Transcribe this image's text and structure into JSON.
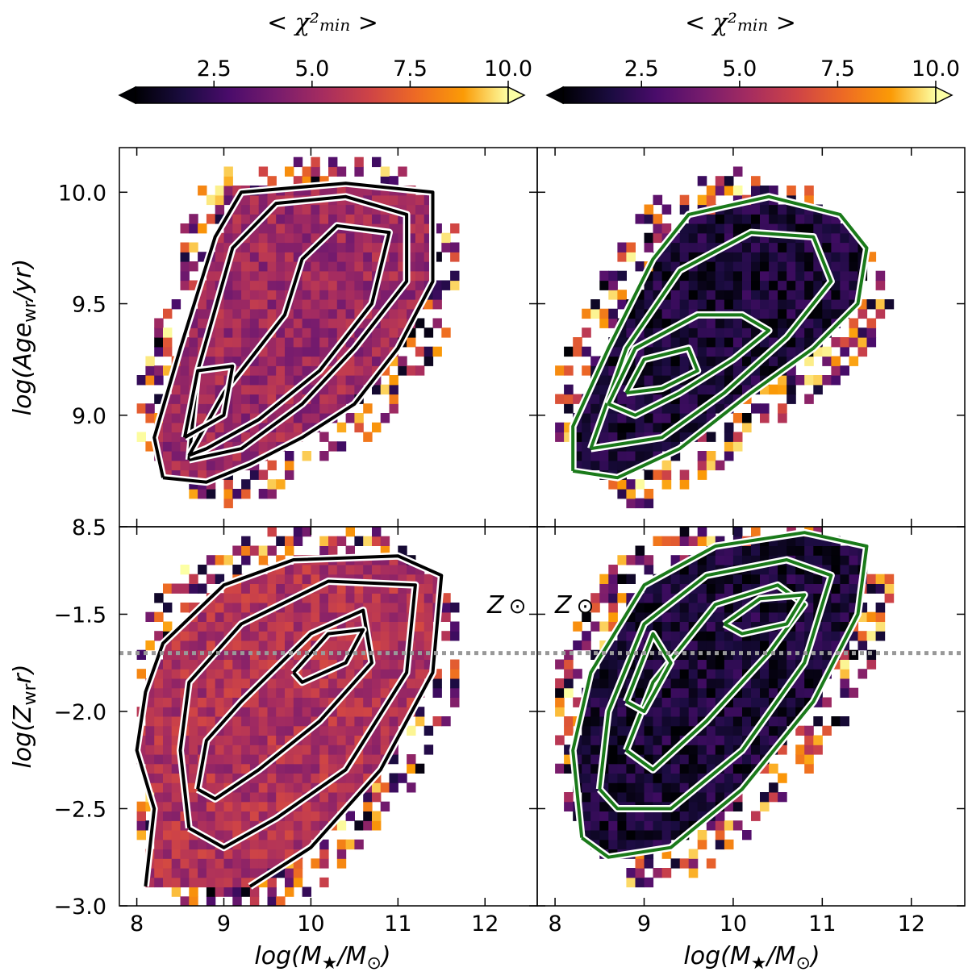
{
  "chart_data": {
    "type": "heatmap",
    "grid": "2x2 panels, shared axes",
    "colormap": "inferno",
    "colorbars": [
      {
        "label": "< χ²min >",
        "range": [
          0.5,
          10.0
        ],
        "ticks": [
          "2.5",
          "5.0",
          "7.5",
          "10.0"
        ],
        "extend": "both",
        "column": "left"
      },
      {
        "label": "< χ²min >",
        "range": [
          0.5,
          10.0
        ],
        "ticks": [
          "2.5",
          "5.0",
          "7.5",
          "10.0"
        ],
        "extend": "both",
        "column": "right"
      }
    ],
    "xlabel": "log(M★/M⊙)",
    "xlim": [
      7.8,
      12.6
    ],
    "xticks": [
      "8",
      "9",
      "10",
      "11",
      "12"
    ],
    "rows": [
      {
        "ylabel": "log(Age wr/yr)",
        "ylim": [
          8.5,
          10.2
        ],
        "yticks": [
          "10.0",
          "9.5",
          "9.0",
          "8.5"
        ],
        "yticks_values": [
          10.0,
          9.5,
          9.0,
          8.5
        ],
        "panels": [
          {
            "column": "left",
            "typical_chi2": 5.0,
            "contour_color": "#000000",
            "contours": [
              [
                [
                  8.3,
                  8.72
                ],
                [
                  8.2,
                  8.9
                ],
                [
                  8.5,
                  9.3
                ],
                [
                  8.9,
                  9.8
                ],
                [
                  9.2,
                  10.0
                ],
                [
                  10.4,
                  10.04
                ],
                [
                  11.4,
                  10.0
                ],
                [
                  11.4,
                  9.6
                ],
                [
                  11.0,
                  9.3
                ],
                [
                  10.5,
                  9.05
                ],
                [
                  9.9,
                  8.9
                ],
                [
                  9.3,
                  8.78
                ],
                [
                  8.8,
                  8.7
                ],
                [
                  8.3,
                  8.72
                ]
              ],
              [
                [
                  8.6,
                  8.8
                ],
                [
                  8.7,
                  9.2
                ],
                [
                  9.1,
                  9.75
                ],
                [
                  9.6,
                  9.95
                ],
                [
                  10.4,
                  9.98
                ],
                [
                  11.1,
                  9.9
                ],
                [
                  11.1,
                  9.6
                ],
                [
                  10.5,
                  9.3
                ],
                [
                  9.9,
                  9.05
                ],
                [
                  9.2,
                  8.85
                ],
                [
                  8.6,
                  8.8
                ]
              ],
              [
                [
                  8.6,
                  8.82
                ],
                [
                  9.0,
                  9.1
                ],
                [
                  9.7,
                  9.45
                ],
                [
                  9.9,
                  9.7
                ],
                [
                  10.3,
                  9.85
                ],
                [
                  10.9,
                  9.82
                ],
                [
                  10.7,
                  9.5
                ],
                [
                  10.1,
                  9.2
                ],
                [
                  9.4,
                  8.98
                ],
                [
                  8.8,
                  8.85
                ],
                [
                  8.6,
                  8.82
                ]
              ],
              [
                [
                  8.55,
                  8.9
                ],
                [
                  8.7,
                  9.2
                ],
                [
                  9.1,
                  9.22
                ],
                [
                  9.0,
                  9.0
                ],
                [
                  8.55,
                  8.9
                ]
              ]
            ]
          },
          {
            "column": "right",
            "typical_chi2": 1.5,
            "contour_color": "#1a7a1a",
            "contours": [
              [
                [
                  8.2,
                  8.75
                ],
                [
                  8.2,
                  8.95
                ],
                [
                  8.6,
                  9.3
                ],
                [
                  9.1,
                  9.7
                ],
                [
                  9.5,
                  9.9
                ],
                [
                  10.4,
                  9.98
                ],
                [
                  11.2,
                  9.9
                ],
                [
                  11.5,
                  9.75
                ],
                [
                  11.4,
                  9.5
                ],
                [
                  10.9,
                  9.3
                ],
                [
                  10.2,
                  9.1
                ],
                [
                  9.4,
                  8.85
                ],
                [
                  8.7,
                  8.72
                ],
                [
                  8.2,
                  8.75
                ]
              ],
              [
                [
                  8.4,
                  8.85
                ],
                [
                  8.8,
                  9.3
                ],
                [
                  9.4,
                  9.65
                ],
                [
                  10.2,
                  9.82
                ],
                [
                  10.9,
                  9.8
                ],
                [
                  11.1,
                  9.6
                ],
                [
                  10.6,
                  9.35
                ],
                [
                  9.9,
                  9.1
                ],
                [
                  9.2,
                  8.9
                ],
                [
                  8.4,
                  8.85
                ]
              ],
              [
                [
                  8.6,
                  9.05
                ],
                [
                  8.9,
                  9.3
                ],
                [
                  9.6,
                  9.45
                ],
                [
                  10.1,
                  9.45
                ],
                [
                  10.4,
                  9.38
                ],
                [
                  10.0,
                  9.25
                ],
                [
                  9.4,
                  9.1
                ],
                [
                  8.9,
                  9.0
                ],
                [
                  8.6,
                  9.05
                ]
              ],
              [
                [
                  8.8,
                  9.1
                ],
                [
                  9.0,
                  9.25
                ],
                [
                  9.5,
                  9.3
                ],
                [
                  9.6,
                  9.2
                ],
                [
                  9.2,
                  9.12
                ],
                [
                  8.8,
                  9.1
                ]
              ]
            ]
          }
        ]
      },
      {
        "ylabel": "log(Z wr)",
        "ylim": [
          -3.0,
          -1.05
        ],
        "yticks": [
          "-1.5",
          "-2.0",
          "-2.5",
          "-3.0"
        ],
        "yticks_values": [
          -1.5,
          -2.0,
          -2.5,
          -3.0
        ],
        "reference_line": {
          "y": -1.7,
          "label": "Z⊙",
          "style": "dotted",
          "color": "#999999"
        },
        "panels": [
          {
            "column": "left",
            "typical_chi2": 5.5,
            "contour_color": "#000000",
            "contours": [
              [
                [
                  8.1,
                  -2.9
                ],
                [
                  8.2,
                  -2.5
                ],
                [
                  8.0,
                  -2.2
                ],
                [
                  8.1,
                  -1.9
                ],
                [
                  8.3,
                  -1.65
                ],
                [
                  9.0,
                  -1.35
                ],
                [
                  9.8,
                  -1.22
                ],
                [
                  11.0,
                  -1.2
                ],
                [
                  11.5,
                  -1.3
                ],
                [
                  11.4,
                  -1.8
                ],
                [
                  10.8,
                  -2.3
                ],
                [
                  10.0,
                  -2.7
                ],
                [
                  9.3,
                  -2.9
                ]
              ],
              [
                [
                  8.6,
                  -2.6
                ],
                [
                  8.5,
                  -2.2
                ],
                [
                  8.6,
                  -1.85
                ],
                [
                  9.2,
                  -1.55
                ],
                [
                  10.2,
                  -1.33
                ],
                [
                  11.2,
                  -1.35
                ],
                [
                  11.1,
                  -1.8
                ],
                [
                  10.4,
                  -2.3
                ],
                [
                  9.6,
                  -2.55
                ],
                [
                  9.0,
                  -2.7
                ],
                [
                  8.6,
                  -2.6
                ]
              ],
              [
                [
                  8.7,
                  -2.4
                ],
                [
                  8.8,
                  -2.15
                ],
                [
                  9.2,
                  -1.95
                ],
                [
                  10.0,
                  -1.6
                ],
                [
                  10.6,
                  -1.48
                ],
                [
                  10.7,
                  -1.75
                ],
                [
                  10.1,
                  -2.05
                ],
                [
                  9.4,
                  -2.3
                ],
                [
                  8.9,
                  -2.45
                ],
                [
                  8.7,
                  -2.4
                ]
              ],
              [
                [
                  9.8,
                  -1.8
                ],
                [
                  10.2,
                  -1.6
                ],
                [
                  10.6,
                  -1.58
                ],
                [
                  10.4,
                  -1.75
                ],
                [
                  9.9,
                  -1.85
                ],
                [
                  9.8,
                  -1.8
                ]
              ]
            ]
          },
          {
            "column": "right",
            "typical_chi2": 1.5,
            "contour_color": "#1a7a1a",
            "contours": [
              [
                [
                  8.3,
                  -2.65
                ],
                [
                  8.2,
                  -2.2
                ],
                [
                  8.4,
                  -1.8
                ],
                [
                  9.0,
                  -1.35
                ],
                [
                  9.8,
                  -1.15
                ],
                [
                  10.8,
                  -1.08
                ],
                [
                  11.5,
                  -1.15
                ],
                [
                  11.4,
                  -1.5
                ],
                [
                  10.9,
                  -1.95
                ],
                [
                  10.1,
                  -2.4
                ],
                [
                  9.3,
                  -2.7
                ],
                [
                  8.6,
                  -2.75
                ],
                [
                  8.3,
                  -2.65
                ]
              ],
              [
                [
                  8.5,
                  -2.4
                ],
                [
                  8.6,
                  -2.0
                ],
                [
                  9.0,
                  -1.55
                ],
                [
                  9.7,
                  -1.3
                ],
                [
                  10.6,
                  -1.22
                ],
                [
                  11.1,
                  -1.3
                ],
                [
                  10.8,
                  -1.75
                ],
                [
                  10.1,
                  -2.2
                ],
                [
                  9.3,
                  -2.5
                ],
                [
                  8.7,
                  -2.5
                ],
                [
                  8.5,
                  -2.4
                ]
              ],
              [
                [
                  8.8,
                  -2.2
                ],
                [
                  9.1,
                  -1.85
                ],
                [
                  9.8,
                  -1.45
                ],
                [
                  10.5,
                  -1.35
                ],
                [
                  10.8,
                  -1.45
                ],
                [
                  10.4,
                  -1.7
                ],
                [
                  9.7,
                  -2.05
                ],
                [
                  9.1,
                  -2.3
                ],
                [
                  8.8,
                  -2.2
                ]
              ],
              [
                [
                  9.9,
                  -1.55
                ],
                [
                  10.3,
                  -1.42
                ],
                [
                  10.8,
                  -1.4
                ],
                [
                  10.6,
                  -1.55
                ],
                [
                  10.1,
                  -1.6
                ],
                [
                  9.9,
                  -1.55
                ]
              ],
              [
                [
                  8.8,
                  -1.95
                ],
                [
                  9.1,
                  -1.6
                ],
                [
                  9.3,
                  -1.75
                ],
                [
                  9.0,
                  -2.0
                ],
                [
                  8.8,
                  -1.95
                ]
              ]
            ]
          }
        ]
      }
    ]
  }
}
